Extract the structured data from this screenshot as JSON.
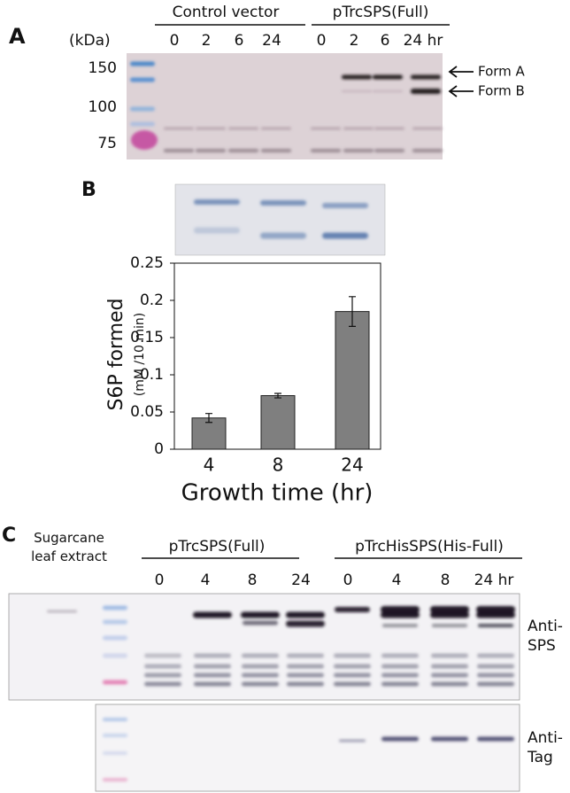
{
  "panel_a": {
    "label": "A",
    "groups": [
      "Control vector",
      "pTrcSPS(Full)"
    ],
    "lanes": [
      "0",
      "2",
      "6",
      "24",
      "0",
      "2",
      "6",
      "24 hr"
    ],
    "unit": "(kDa)",
    "markers": [
      "150",
      "100",
      "75"
    ],
    "forms": [
      "Form A",
      "Form B"
    ]
  },
  "chart_data": {
    "type": "bar",
    "label": "B",
    "ylabel": "S6P formed",
    "ylabel_sub": "(mM /10 min)",
    "xlabel": "Growth time (hr)",
    "categories": [
      "4",
      "8",
      "24"
    ],
    "values": [
      0.042,
      0.072,
      0.185
    ],
    "errors": [
      0.006,
      0.003,
      0.02
    ],
    "color": "#7f7f7f",
    "ylim": [
      0,
      0.25
    ],
    "yticks": [
      0,
      0.05,
      0.1,
      0.15,
      0.2,
      0.25
    ]
  },
  "panel_c": {
    "label": "C",
    "extract": "Sugarcane leaf extract",
    "groups": [
      "pTrcSPS(Full)",
      "pTrcHisSPS(His-Full)"
    ],
    "lanes": [
      "0",
      "4",
      "8",
      "24",
      "0",
      "4",
      "8",
      "24 hr"
    ],
    "blots": [
      "Anti-SPS",
      "Anti-Tag"
    ]
  }
}
